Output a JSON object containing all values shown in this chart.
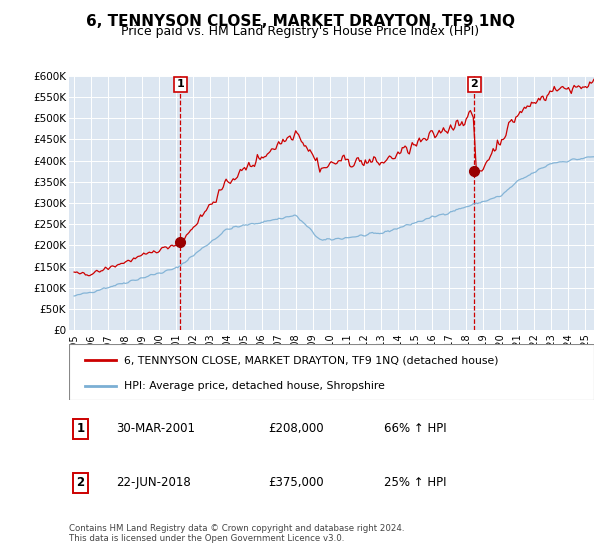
{
  "title": "6, TENNYSON CLOSE, MARKET DRAYTON, TF9 1NQ",
  "subtitle": "Price paid vs. HM Land Registry's House Price Index (HPI)",
  "title_fontsize": 11,
  "subtitle_fontsize": 9,
  "background_color": "#ffffff",
  "plot_bg_color": "#dce6f1",
  "grid_color": "#ffffff",
  "ylim": [
    0,
    600000
  ],
  "yticks": [
    0,
    50000,
    100000,
    150000,
    200000,
    250000,
    300000,
    350000,
    400000,
    450000,
    500000,
    550000,
    600000
  ],
  "ytick_labels": [
    "£0",
    "£50K",
    "£100K",
    "£150K",
    "£200K",
    "£250K",
    "£300K",
    "£350K",
    "£400K",
    "£450K",
    "£500K",
    "£550K",
    "£600K"
  ],
  "xlim_start": 1994.7,
  "xlim_end": 2025.5,
  "xtick_years": [
    1995,
    1996,
    1997,
    1998,
    1999,
    2000,
    2001,
    2002,
    2003,
    2004,
    2005,
    2006,
    2007,
    2008,
    2009,
    2010,
    2011,
    2012,
    2013,
    2014,
    2015,
    2016,
    2017,
    2018,
    2019,
    2020,
    2021,
    2022,
    2023,
    2024,
    2025
  ],
  "sale1_x": 2001.24,
  "sale1_y": 208000,
  "sale1_label": "1",
  "sale2_x": 2018.48,
  "sale2_y": 375000,
  "sale2_label": "2",
  "sale_color": "#cc0000",
  "hpi_color": "#7bafd4",
  "dashed_line_color": "#cc0000",
  "marker_color": "#990000",
  "legend_entries": [
    "6, TENNYSON CLOSE, MARKET DRAYTON, TF9 1NQ (detached house)",
    "HPI: Average price, detached house, Shropshire"
  ],
  "table_rows": [
    {
      "num": "1",
      "date": "30-MAR-2001",
      "price": "£208,000",
      "hpi": "66% ↑ HPI"
    },
    {
      "num": "2",
      "date": "22-JUN-2018",
      "price": "£375,000",
      "hpi": "25% ↑ HPI"
    }
  ],
  "footer": "Contains HM Land Registry data © Crown copyright and database right 2024.\nThis data is licensed under the Open Government Licence v3.0."
}
